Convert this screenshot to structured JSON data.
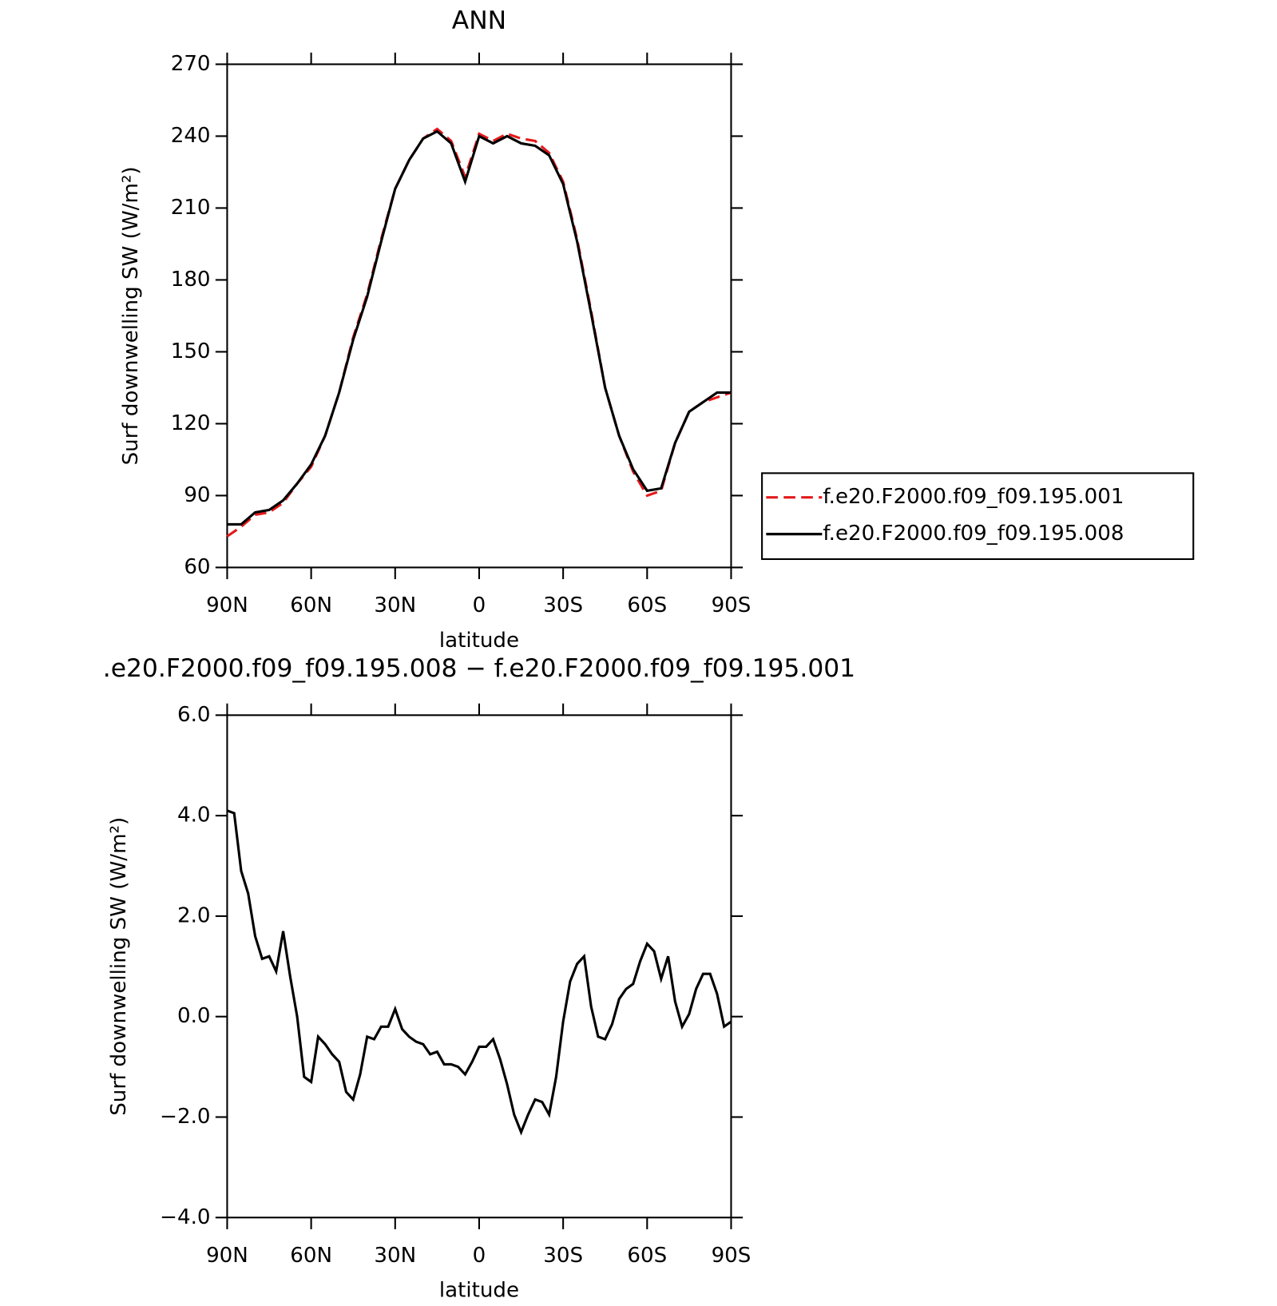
{
  "chart_data": [
    {
      "type": "line",
      "title": "ANN",
      "xlabel": "latitude",
      "ylabel": "Surf downwelling SW (W/m²)",
      "x": [
        90,
        85,
        80,
        75,
        70,
        65,
        60,
        55,
        50,
        45,
        40,
        35,
        30,
        25,
        20,
        15,
        10,
        5,
        0,
        -5,
        -10,
        -15,
        -20,
        -25,
        -30,
        -35,
        -40,
        -45,
        -50,
        -55,
        -60,
        -65,
        -70,
        -75,
        -80,
        -85,
        -90
      ],
      "xlim": [
        90,
        -90
      ],
      "xticks": [
        {
          "value": 90,
          "label": "90N"
        },
        {
          "value": 60,
          "label": "60N"
        },
        {
          "value": 30,
          "label": "30N"
        },
        0,
        {
          "value": -30,
          "label": "30S"
        },
        {
          "value": -60,
          "label": "60S"
        },
        {
          "value": -90,
          "label": "90S"
        }
      ],
      "ylim": [
        60,
        270
      ],
      "yticks": [
        60,
        90,
        120,
        150,
        180,
        210,
        240,
        270
      ],
      "legend": "right",
      "series": [
        {
          "name": "f.e20.F2000.f09_f09.195.001",
          "color": "#e41a1c",
          "line_style": "dashed",
          "values": [
            73,
            77,
            82,
            83,
            87,
            95,
            102,
            115,
            133,
            156,
            174,
            197,
            218,
            230,
            239,
            243,
            238,
            223,
            241,
            238,
            241,
            239,
            238,
            233,
            221,
            197,
            167,
            135,
            115,
            100,
            90,
            92,
            112,
            125,
            129,
            131,
            133
          ]
        },
        {
          "name": "f.e20.F2000.f09_f09.195.008",
          "color": "#000000",
          "line_style": "solid",
          "values": [
            78,
            78,
            83,
            84,
            88,
            95,
            103,
            115,
            133,
            155,
            173,
            196,
            218,
            230,
            239,
            242,
            237,
            221,
            240,
            237,
            240,
            237,
            236,
            232,
            220,
            196,
            166,
            135,
            115,
            101,
            92,
            93,
            112,
            125,
            129,
            133,
            133
          ]
        }
      ]
    },
    {
      "type": "line",
      "title": ".e20.F2000.f09_f09.195.008 − f.e20.F2000.f09_f09.195.001",
      "xlabel": "latitude",
      "ylabel": "Surf downwelling SW (W/m²)",
      "x": [
        90,
        87.5,
        85,
        82.5,
        80,
        77.5,
        75,
        72.5,
        70,
        67.5,
        65,
        62.5,
        60,
        57.5,
        55,
        52.5,
        50,
        47.5,
        45,
        42.5,
        40,
        37.5,
        35,
        32.5,
        30,
        27.5,
        25,
        22.5,
        20,
        17.5,
        15,
        12.5,
        10,
        7.5,
        5,
        2.5,
        0,
        -2.5,
        -5,
        -7.5,
        -10,
        -12.5,
        -15,
        -17.5,
        -20,
        -22.5,
        -25,
        -27.5,
        -30,
        -32.5,
        -35,
        -37.5,
        -40,
        -42.5,
        -45,
        -47.5,
        -50,
        -52.5,
        -55,
        -57.5,
        -60,
        -62.5,
        -65,
        -67.5,
        -70,
        -72.5,
        -75,
        -77.5,
        -80,
        -82.5,
        -85,
        -87.5,
        -90
      ],
      "xlim": [
        90,
        -90
      ],
      "xticks": [
        {
          "value": 90,
          "label": "90N"
        },
        {
          "value": 60,
          "label": "60N"
        },
        {
          "value": 30,
          "label": "30N"
        },
        0,
        {
          "value": -30,
          "label": "30S"
        },
        {
          "value": -60,
          "label": "60S"
        },
        {
          "value": -90,
          "label": "90S"
        }
      ],
      "ylim": [
        -4,
        6
      ],
      "yticks": [
        {
          "value": -4,
          "label": "−4.0"
        },
        {
          "value": -2,
          "label": "−2.0"
        },
        {
          "value": 0,
          "label": "0.0"
        },
        {
          "value": 2,
          "label": "2.0"
        },
        {
          "value": 4,
          "label": "4.0"
        },
        {
          "value": 6,
          "label": "6.0"
        }
      ],
      "series": [
        {
          "color": "#000000",
          "line_style": "solid",
          "values": [
            4.1,
            4.05,
            2.9,
            2.45,
            1.6,
            1.15,
            1.2,
            0.9,
            1.7,
            0.8,
            0.0,
            -1.2,
            -1.3,
            -0.4,
            -0.55,
            -0.75,
            -0.9,
            -1.5,
            -1.65,
            -1.15,
            -0.4,
            -0.45,
            -0.2,
            -0.2,
            0.15,
            -0.25,
            -0.4,
            -0.5,
            -0.55,
            -0.75,
            -0.7,
            -0.95,
            -0.95,
            -1.0,
            -1.15,
            -0.9,
            -0.6,
            -0.6,
            -0.45,
            -0.85,
            -1.35,
            -1.95,
            -2.3,
            -1.95,
            -1.65,
            -1.7,
            -1.95,
            -1.2,
            -0.1,
            0.7,
            1.05,
            1.2,
            0.2,
            -0.4,
            -0.45,
            -0.15,
            0.35,
            0.55,
            0.65,
            1.1,
            1.45,
            1.3,
            0.75,
            1.2,
            0.3,
            -0.2,
            0.05,
            0.55,
            0.85,
            0.85,
            0.45,
            -0.2,
            -0.1
          ]
        }
      ]
    }
  ]
}
